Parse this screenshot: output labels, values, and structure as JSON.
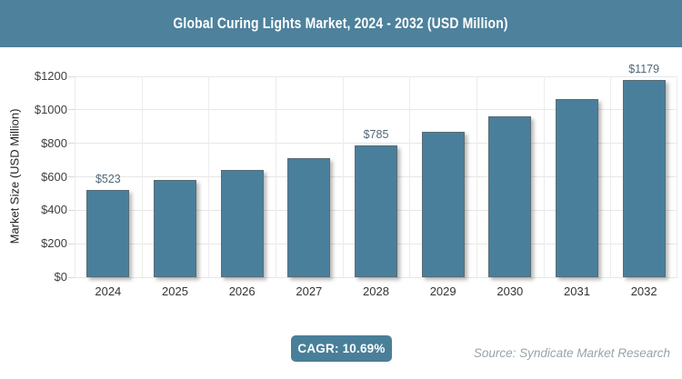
{
  "chart_data": {
    "type": "bar",
    "title": "Global Curing Lights Market, 2024 - 2032 (USD Million)",
    "xlabel": "",
    "ylabel": "Market Size (USD Million)",
    "categories": [
      "2024",
      "2025",
      "2026",
      "2027",
      "2028",
      "2029",
      "2030",
      "2031",
      "2032"
    ],
    "values": [
      523,
      579,
      641,
      709,
      785,
      869,
      962,
      1065,
      1179
    ],
    "point_labels": [
      "$523",
      "",
      "",
      "",
      "$785",
      "",
      "",
      "",
      "$1179"
    ],
    "ylim": [
      0,
      1200
    ],
    "ytick_interval": 200,
    "ytick_labels": [
      "$0",
      "$200",
      "$400",
      "$600",
      "$800",
      "$1000",
      "$1200"
    ],
    "grid": true,
    "legend_position": "none"
  },
  "footer": {
    "cagr_label": "CAGR: 10.69%",
    "source": "Source: Syndicate Market Research"
  },
  "colors": {
    "header_bg": "#4D819C",
    "bar_fill": "#4A7F9B",
    "badge_bg": "#4A7F99",
    "gridline": "#E7E7E7",
    "axis_text": "#3F3F3F",
    "year_text": "#333333",
    "value_label_text": "#536877",
    "source_text": "#97A4A9",
    "title_text": "#FFFFFF"
  }
}
